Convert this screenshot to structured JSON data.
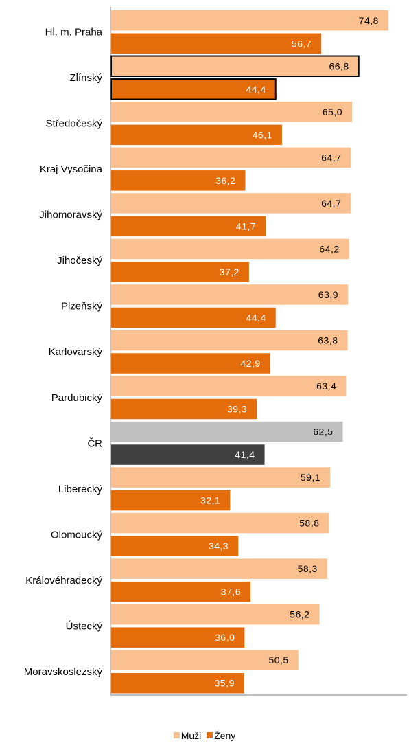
{
  "chart_data": {
    "type": "bar",
    "orientation": "horizontal",
    "categories": [
      "Hl. m. Praha",
      "Zlínský",
      "Středočeský",
      "Kraj Vysočina",
      "Jihomoravský",
      "Jihočeský",
      "Plzeňský",
      "Karlovarský",
      "Pardubický",
      "ČR",
      "Liberecký",
      "Olomoucký",
      "Královéhradecký",
      "Ústecký",
      "Moravskoslezský"
    ],
    "series": [
      {
        "name": "Muži",
        "values": [
          74.8,
          66.8,
          65.0,
          64.7,
          64.7,
          64.2,
          63.9,
          63.8,
          63.4,
          62.5,
          59.1,
          58.8,
          58.3,
          56.2,
          50.5
        ],
        "value_labels": [
          "74,8",
          "66,8",
          "65,0",
          "64,7",
          "64,7",
          "64,2",
          "63,9",
          "63,8",
          "63,4",
          "62,5",
          "59,1",
          "58,8",
          "58,3",
          "56,2",
          "50,5"
        ]
      },
      {
        "name": "Ženy",
        "values": [
          56.7,
          44.4,
          46.1,
          36.2,
          41.7,
          37.2,
          44.4,
          42.9,
          39.3,
          41.4,
          32.1,
          34.3,
          37.6,
          36.0,
          35.9
        ],
        "value_labels": [
          "56,7",
          "44,4",
          "46,1",
          "36,2",
          "41,7",
          "37,2",
          "44,4",
          "42,9",
          "39,3",
          "41,4",
          "32,1",
          "34,3",
          "37,6",
          "36,0",
          "35,9"
        ]
      }
    ],
    "highlighted_category": "ČR",
    "outlined_category": "Zlínský",
    "xlim": [
      0,
      80
    ],
    "legend_position": "bottom",
    "grid": false,
    "colors": {
      "muzi": "#FAC090",
      "zeny": "#E46C0A",
      "cr_muzi": "#BFBFBF",
      "cr_zeny": "#404040",
      "axis": "#808080",
      "label_on_dark": "#ffffff",
      "label_on_light": "#000000"
    }
  },
  "legend": {
    "items": [
      {
        "label": "Muži",
        "color": "#FAC090"
      },
      {
        "label": "Ženy",
        "color": "#E46C0A"
      }
    ]
  }
}
